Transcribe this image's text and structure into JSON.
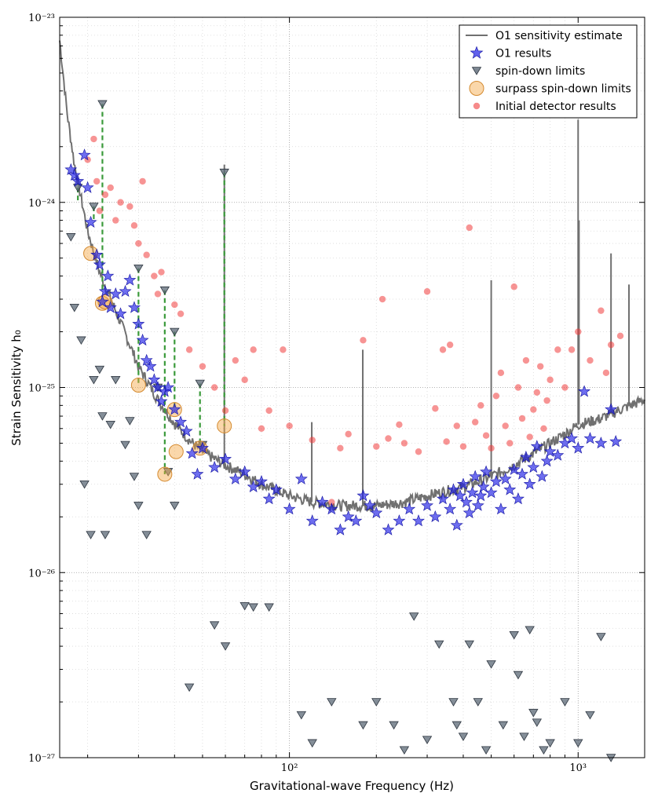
{
  "chart_data": {
    "type": "scatter",
    "xscale": "log",
    "yscale": "log",
    "xlim": [
      16,
      1700
    ],
    "ylim": [
      1e-27,
      1e-23
    ],
    "xlabel": "Gravitational-wave Frequency (Hz)",
    "ylabel": "Strain Sensitivity h₀",
    "grid": true,
    "legend_placement": "top-right",
    "x_ticks": [
      {
        "value": 100,
        "label": "10²"
      },
      {
        "value": 1000,
        "label": "10³"
      }
    ],
    "y_ticks": [
      {
        "value": 1e-23,
        "label": "10⁻²³"
      },
      {
        "value": 1e-24,
        "label": "10⁻²⁴"
      },
      {
        "value": 1e-25,
        "label": "10⁻²⁵"
      },
      {
        "value": 1e-26,
        "label": "10⁻²⁶"
      },
      {
        "value": 1e-27,
        "label": "10⁻²⁷"
      }
    ],
    "legend": [
      {
        "label": "O1 sensitivity estimate",
        "marker": "line",
        "color": "#707070"
      },
      {
        "label": "O1 results",
        "marker": "star",
        "color": "#1f1fe6"
      },
      {
        "label": "spin-down limits",
        "marker": "triangle-down",
        "color": "#5b6876"
      },
      {
        "label": "surpass spin-down limits",
        "marker": "circle-large",
        "color": "#f5a742"
      },
      {
        "label": "Initial detector results",
        "marker": "circle",
        "color": "#f03c3c"
      }
    ],
    "sensitivity_curve": {
      "x": [
        16,
        17,
        18,
        19,
        20,
        22,
        25,
        28,
        30,
        35,
        40,
        45,
        50,
        60,
        70,
        80,
        100,
        120,
        150,
        200,
        250,
        300,
        400,
        500,
        600,
        700,
        800,
        900,
        1000,
        1200,
        1400,
        1700
      ],
      "y": [
        7.5e-24,
        3e-24,
        1.6e-24,
        1.05e-24,
        7e-25,
        4.2e-25,
        2.6e-25,
        1.7e-25,
        1.3e-25,
        8.6e-26,
        6.4e-26,
        5.2e-26,
        4.5e-26,
        3.8e-26,
        3.4e-26,
        3e-26,
        2.6e-26,
        2.4e-26,
        2.3e-26,
        2.3e-26,
        2.4e-26,
        2.6e-26,
        2.9e-26,
        3.3e-26,
        3.8e-26,
        4.4e-26,
        5e-26,
        5.6e-26,
        6.3e-26,
        6.8e-26,
        7.6e-26,
        8.6e-26
      ],
      "lines": [
        {
          "x": 59.5,
          "y": 1.6e-24
        },
        {
          "x": 119.5,
          "y": 6.5e-26
        },
        {
          "x": 179.5,
          "y": 1.6e-25
        },
        {
          "x": 500,
          "y": 3.8e-25
        },
        {
          "x": 1000,
          "y": 2.8e-24
        },
        {
          "x": 1007,
          "y": 8e-25
        },
        {
          "x": 1300,
          "y": 5.3e-25
        },
        {
          "x": 1500,
          "y": 3.6e-25
        }
      ]
    },
    "o1_results": {
      "x": [
        17.5,
        18,
        18.5,
        19.5,
        20,
        20.5,
        21.5,
        22,
        22.5,
        23,
        23.5,
        24,
        25,
        26,
        27,
        28,
        29,
        30,
        31,
        32,
        33,
        34,
        35,
        36,
        37,
        38,
        40,
        42,
        44,
        46,
        48,
        50,
        55,
        60,
        65,
        70,
        75,
        80,
        85,
        90,
        100,
        110,
        120,
        130,
        140,
        150,
        160,
        170,
        180,
        190,
        200,
        220,
        240,
        260,
        280,
        300,
        320,
        340,
        360,
        370,
        380,
        390,
        400,
        410,
        420,
        430,
        440,
        450,
        460,
        470,
        480,
        500,
        520,
        540,
        560,
        580,
        600,
        620,
        640,
        660,
        680,
        700,
        720,
        750,
        780,
        800,
        850,
        900,
        950,
        1000,
        1050,
        1100,
        1200,
        1300,
        1350
      ],
      "y": [
        1.5e-24,
        1.4e-24,
        1.3e-24,
        1.8e-24,
        1.2e-24,
        7.8e-25,
        5.2e-25,
        4.6e-25,
        2.9e-25,
        3.3e-25,
        4e-25,
        2.7e-25,
        3.2e-25,
        2.5e-25,
        3.3e-25,
        3.8e-25,
        2.7e-25,
        2.2e-25,
        1.8e-25,
        1.4e-25,
        1.3e-25,
        1.1e-25,
        1e-25,
        8.4e-26,
        9.5e-26,
        1e-25,
        7.6e-26,
        6.5e-26,
        5.8e-26,
        4.4e-26,
        3.4e-26,
        4.7e-26,
        3.7e-26,
        4.1e-26,
        3.2e-26,
        3.5e-26,
        2.9e-26,
        3.1e-26,
        2.5e-26,
        2.8e-26,
        2.2e-26,
        3.2e-26,
        1.9e-26,
        2.4e-26,
        2.2e-26,
        1.7e-26,
        2e-26,
        1.9e-26,
        2.6e-26,
        2.3e-26,
        2.1e-26,
        1.7e-26,
        1.9e-26,
        2.2e-26,
        1.9e-26,
        2.3e-26,
        2e-26,
        2.5e-26,
        2.2e-26,
        2.8e-26,
        1.8e-26,
        2.6e-26,
        3e-26,
        2.4e-26,
        2.1e-26,
        2.7e-26,
        3.3e-26,
        2.3e-26,
        2.6e-26,
        2.9e-26,
        3.5e-26,
        2.7e-26,
        3.1e-26,
        2.2e-26,
        3.2e-26,
        2.8e-26,
        3.6e-26,
        2.5e-26,
        3.4e-26,
        4.2e-26,
        3e-26,
        3.7e-26,
        4.8e-26,
        3.3e-26,
        4e-26,
        4.5e-26,
        4.3e-26,
        5e-26,
        5.3e-26,
        4.7e-26,
        9.5e-26,
        5.3e-26,
        5e-26,
        7.6e-26,
        5.1e-26
      ]
    },
    "spin_down_limits": {
      "x": [
        17.5,
        18,
        19,
        19.5,
        20.5,
        21,
        22,
        22.5,
        23,
        24,
        25,
        27,
        28,
        29,
        30,
        32,
        35,
        38,
        40,
        45,
        50,
        55,
        60,
        70,
        75,
        85,
        110,
        120,
        140,
        180,
        200,
        230,
        250,
        270,
        300,
        330,
        370,
        380,
        400,
        420,
        450,
        480,
        500,
        550,
        600,
        620,
        650,
        680,
        700,
        720,
        760,
        800,
        900,
        1000,
        1100,
        1200,
        1300
      ],
      "y": [
        6.5e-25,
        2.7e-25,
        1.8e-25,
        3e-26,
        1.6e-26,
        1.1e-25,
        1.25e-25,
        7e-26,
        1.6e-26,
        6.3e-26,
        1.1e-25,
        4.9e-26,
        6.6e-26,
        3.3e-26,
        2.3e-26,
        1.6e-26,
        1e-25,
        3.5e-26,
        2.3e-26,
        2.4e-27,
        4.9e-26,
        5.2e-27,
        4e-27,
        6.6e-27,
        6.5e-27,
        6.5e-27,
        1.7e-27,
        1.2e-27,
        2e-27,
        1.5e-27,
        2e-27,
        1.5e-27,
        1.1e-27,
        5.8e-27,
        1.25e-27,
        4.1e-27,
        2e-27,
        1.5e-27,
        1.3e-27,
        4.1e-27,
        2e-27,
        1.1e-27,
        3.2e-27,
        1.5e-27,
        4.6e-27,
        2.8e-27,
        1.3e-27,
        4.9e-27,
        1.75e-27,
        1.55e-27,
        1.1e-27,
        1.2e-27,
        2e-27,
        1.2e-27,
        1.7e-27,
        4.5e-27,
        1e-27
      ]
    },
    "spin_down_arrows": [
      {
        "x": 18.5,
        "y_top": 1.2e-24,
        "y_bottom": 1e-24
      },
      {
        "x": 21,
        "y_top": 9.5e-25,
        "y_bottom": 7.8e-25
      },
      {
        "x": 22.5,
        "y_top": 3.4e-24,
        "y_bottom": 3.3e-25
      },
      {
        "x": 30,
        "y_top": 4.4e-25,
        "y_bottom": 1.05e-25
      },
      {
        "x": 37,
        "y_top": 3.35e-25,
        "y_bottom": 3.4e-26
      },
      {
        "x": 40,
        "y_top": 2e-25,
        "y_bottom": 7.5e-26
      },
      {
        "x": 49,
        "y_top": 1.05e-25,
        "y_bottom": 4.7e-26
      },
      {
        "x": 59.5,
        "y_top": 1.45e-24,
        "y_bottom": 6.2e-26
      }
    ],
    "surpass": {
      "x": [
        20.5,
        22.5,
        23,
        30,
        37,
        40,
        40.5,
        49,
        59.5
      ],
      "y": [
        5.3e-25,
        2.85e-25,
        2.9e-25,
        1.03e-25,
        3.4e-26,
        7.6e-26,
        4.5e-26,
        4.7e-26,
        6.2e-26
      ]
    },
    "initial_detector": {
      "x": [
        20,
        21,
        21.5,
        22,
        23,
        24,
        25,
        26,
        28,
        29,
        30,
        31,
        32,
        34,
        35,
        36,
        40,
        42,
        45,
        50,
        55,
        60,
        65,
        70,
        75,
        80,
        85,
        95,
        100,
        120,
        140,
        150,
        160,
        180,
        200,
        210,
        220,
        240,
        250,
        280,
        300,
        320,
        340,
        350,
        360,
        380,
        400,
        420,
        440,
        460,
        480,
        500,
        520,
        540,
        560,
        580,
        600,
        620,
        640,
        660,
        680,
        700,
        720,
        740,
        760,
        780,
        800,
        850,
        900,
        950,
        1000,
        1100,
        1200,
        1250,
        1300,
        1400
      ],
      "y": [
        1.7e-24,
        2.2e-24,
        1.3e-24,
        9e-25,
        1.1e-24,
        1.2e-24,
        8e-25,
        1e-24,
        9.5e-25,
        7.5e-25,
        6e-25,
        1.3e-24,
        5.2e-25,
        4e-25,
        3.2e-25,
        4.2e-25,
        2.8e-25,
        2.5e-25,
        1.6e-25,
        1.3e-25,
        1e-25,
        7.5e-26,
        1.4e-25,
        1.1e-25,
        1.6e-25,
        6e-26,
        7.5e-26,
        1.6e-25,
        6.2e-26,
        5.2e-26,
        2.4e-26,
        4.7e-26,
        5.6e-26,
        1.8e-25,
        4.8e-26,
        3e-25,
        5.3e-26,
        6.3e-26,
        5e-26,
        4.5e-26,
        3.3e-25,
        7.7e-26,
        1.6e-25,
        5.1e-26,
        1.7e-25,
        6.2e-26,
        4.8e-26,
        7.3e-25,
        6.5e-26,
        8e-26,
        5.5e-26,
        4.7e-26,
        9e-26,
        1.2e-25,
        6.2e-26,
        5e-26,
        3.5e-25,
        1e-25,
        6.8e-26,
        1.4e-25,
        5.4e-26,
        7.6e-26,
        9.4e-26,
        1.3e-25,
        6e-26,
        8.5e-26,
        1.1e-25,
        1.6e-25,
        1e-25,
        1.6e-25,
        2e-25,
        1.4e-25,
        2.6e-25,
        1.2e-25,
        1.7e-25,
        1.9e-25
      ]
    }
  }
}
